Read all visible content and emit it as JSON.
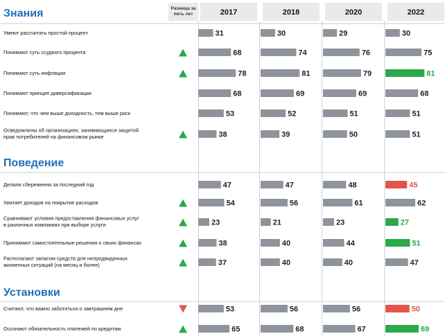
{
  "chart_data": {
    "type": "bar",
    "delta_header_lines": [
      "Разница за",
      "пять лет"
    ],
    "years": [
      "2017",
      "2018",
      "2020",
      "2022"
    ],
    "xlim": [
      0,
      100
    ],
    "colors": {
      "default": "#8f949c",
      "increase": "#2aa84a",
      "decrease": "#e2544c",
      "arrow_up": "#2aa84a",
      "arrow_down": "#e2544c",
      "section_title": "#1f6fb6"
    },
    "sections": [
      {
        "title": "Знания",
        "rows": [
          {
            "label": [
              "Умеют рассчитать простой процент"
            ],
            "values": [
              31,
              30,
              29,
              30
            ],
            "trend": "",
            "highlight": ""
          },
          {
            "label": [
              "Понимают суть ссудного процента"
            ],
            "values": [
              68,
              74,
              76,
              75
            ],
            "trend": "up",
            "highlight": ""
          },
          {
            "label": [
              "Понимают суть инфляции"
            ],
            "values": [
              78,
              81,
              79,
              81
            ],
            "trend": "up",
            "highlight": "increase"
          },
          {
            "label": [
              "Понимают принцип диверсификации"
            ],
            "values": [
              68,
              69,
              69,
              68
            ],
            "trend": "",
            "highlight": ""
          },
          {
            "label": [
              "Понимают, что чем выше доходность, тем выше риск"
            ],
            "values": [
              53,
              52,
              51,
              51
            ],
            "trend": "",
            "highlight": ""
          },
          {
            "label": [
              "Осведомлены об организациях, занимающихся защитой",
              "прав потребителей на финансовом рынке"
            ],
            "values": [
              38,
              39,
              50,
              51
            ],
            "trend": "up",
            "highlight": ""
          }
        ]
      },
      {
        "title": "Поведение",
        "rows": [
          {
            "label": [
              "Делали сбережения за последний год"
            ],
            "values": [
              47,
              47,
              48,
              45
            ],
            "trend": "",
            "highlight": "decrease"
          },
          {
            "label": [
              "Хватает доходов на покрытие расходов"
            ],
            "values": [
              54,
              56,
              61,
              62
            ],
            "trend": "up",
            "highlight": ""
          },
          {
            "label": [
              "Сравнивают условия предоставления финансовых услуг",
              "в различных компаниях при выборе услуги"
            ],
            "values": [
              23,
              21,
              23,
              27
            ],
            "trend": "up",
            "highlight": "increase"
          },
          {
            "label": [
              "Принимают самостоятельные решения о своих финансах"
            ],
            "values": [
              38,
              40,
              44,
              51
            ],
            "trend": "up",
            "highlight": "increase"
          },
          {
            "label": [
              "Располагают запасом средств для непредвиденных",
              "жизненных ситуаций (на месяц и более)"
            ],
            "values": [
              37,
              40,
              40,
              47
            ],
            "trend": "up",
            "highlight": ""
          }
        ]
      },
      {
        "title": "Установки",
        "rows": [
          {
            "label": [
              "Считают, что важно заботиться о завтрашнем дне"
            ],
            "values": [
              53,
              56,
              56,
              50
            ],
            "trend": "down",
            "highlight": "decrease"
          },
          {
            "label": [
              "Осознают обязательность платежей по кредитам"
            ],
            "values": [
              65,
              68,
              67,
              69
            ],
            "trend": "up",
            "highlight": "increase"
          }
        ]
      }
    ]
  }
}
